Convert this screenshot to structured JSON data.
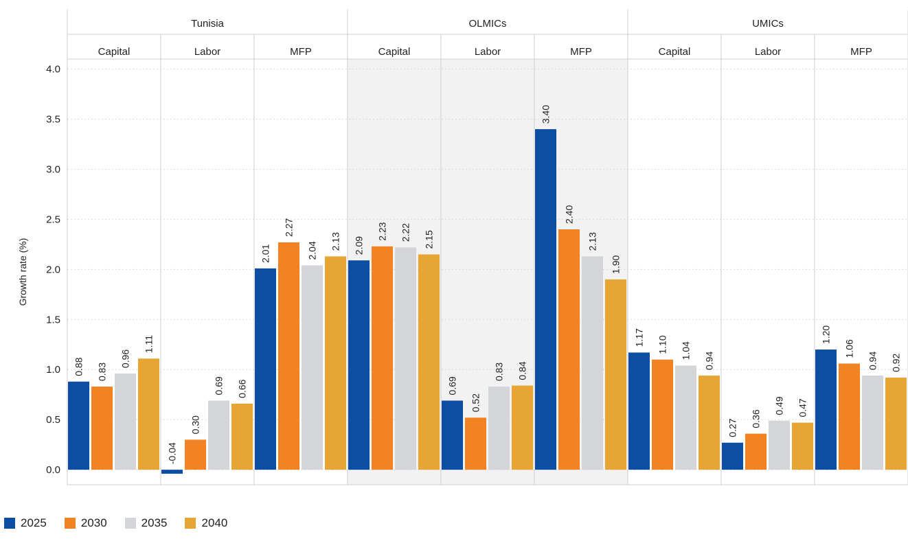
{
  "chart_data": {
    "type": "bar",
    "ylabel": "Growth rate (%)",
    "ylim": [
      -0.15,
      4.1
    ],
    "yticks": [
      0.0,
      0.5,
      1.0,
      1.5,
      2.0,
      2.5,
      3.0,
      3.5,
      4.0
    ],
    "ytick_labels": [
      "0.0",
      "0.5",
      "1.0",
      "1.5",
      "2.0",
      "2.5",
      "3.0",
      "3.5",
      "4.0"
    ],
    "grid": true,
    "legend_position": "bottom-left",
    "groups": [
      {
        "name": "Tunisia",
        "shaded": false,
        "categories": [
          {
            "name": "Capital",
            "values": [
              0.88,
              0.83,
              0.96,
              1.11
            ],
            "labels": [
              "0.88",
              "0.83",
              "0.96",
              "1.11"
            ]
          },
          {
            "name": "Labor",
            "values": [
              -0.04,
              0.3,
              0.69,
              0.66
            ],
            "labels": [
              "-0.04",
              "0.30",
              "0.69",
              "0.66"
            ]
          },
          {
            "name": "MFP",
            "values": [
              2.01,
              2.27,
              2.04,
              2.13
            ],
            "labels": [
              "2.01",
              "2.27",
              "2.04",
              "2.13"
            ]
          }
        ]
      },
      {
        "name": "OLMICs",
        "shaded": true,
        "categories": [
          {
            "name": "Capital",
            "values": [
              2.09,
              2.23,
              2.22,
              2.15
            ],
            "labels": [
              "2.09",
              "2.23",
              "2.22",
              "2.15"
            ]
          },
          {
            "name": "Labor",
            "values": [
              0.69,
              0.52,
              0.83,
              0.84
            ],
            "labels": [
              "0.69",
              "0.52",
              "0.83",
              "0.84"
            ]
          },
          {
            "name": "MFP",
            "values": [
              3.4,
              2.4,
              2.13,
              1.9
            ],
            "labels": [
              "3.40",
              "2.40",
              "2.13",
              "1.90"
            ]
          }
        ]
      },
      {
        "name": "UMICs",
        "shaded": false,
        "categories": [
          {
            "name": "Capital",
            "values": [
              1.17,
              1.1,
              1.04,
              0.94
            ],
            "labels": [
              "1.17",
              "1.10",
              "1.04",
              "0.94"
            ]
          },
          {
            "name": "Labor",
            "values": [
              0.27,
              0.36,
              0.49,
              0.47
            ],
            "labels": [
              "0.27",
              "0.36",
              "0.49",
              "0.47"
            ]
          },
          {
            "name": "MFP",
            "values": [
              1.2,
              1.06,
              0.94,
              0.92
            ],
            "labels": [
              "1.20",
              "1.06",
              "0.94",
              "0.92"
            ]
          }
        ]
      }
    ],
    "series": [
      {
        "name": "2025",
        "color": "#0b4ea2"
      },
      {
        "name": "2030",
        "color": "#f28322"
      },
      {
        "name": "2035",
        "color": "#d4d5d8"
      },
      {
        "name": "2040",
        "color": "#e7a634"
      }
    ],
    "colors": {
      "grid": "#d9d9d9",
      "divider": "#cfcfcf",
      "shade": "#f2f2f2",
      "text": "#222222"
    }
  }
}
